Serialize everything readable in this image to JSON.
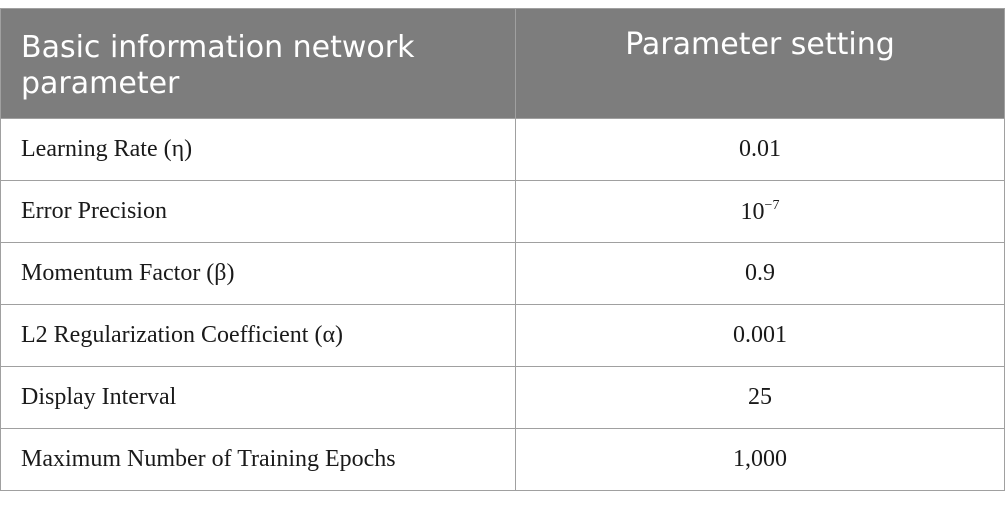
{
  "table": {
    "header": [
      "Basic information network parameter",
      "Parameter setting"
    ],
    "rows": [
      [
        "Learning Rate (η)",
        "0.01"
      ],
      [
        "Error Precision",
        {
          "base": "10",
          "superscript": "−7"
        }
      ],
      [
        "Momentum Factor (β)",
        "0.9"
      ],
      [
        "L2 Regularization Coefficient (α)",
        "0.001"
      ],
      [
        "Display Interval",
        "25"
      ],
      [
        "Maximum Number of Training Epochs",
        "1,000"
      ]
    ]
  }
}
